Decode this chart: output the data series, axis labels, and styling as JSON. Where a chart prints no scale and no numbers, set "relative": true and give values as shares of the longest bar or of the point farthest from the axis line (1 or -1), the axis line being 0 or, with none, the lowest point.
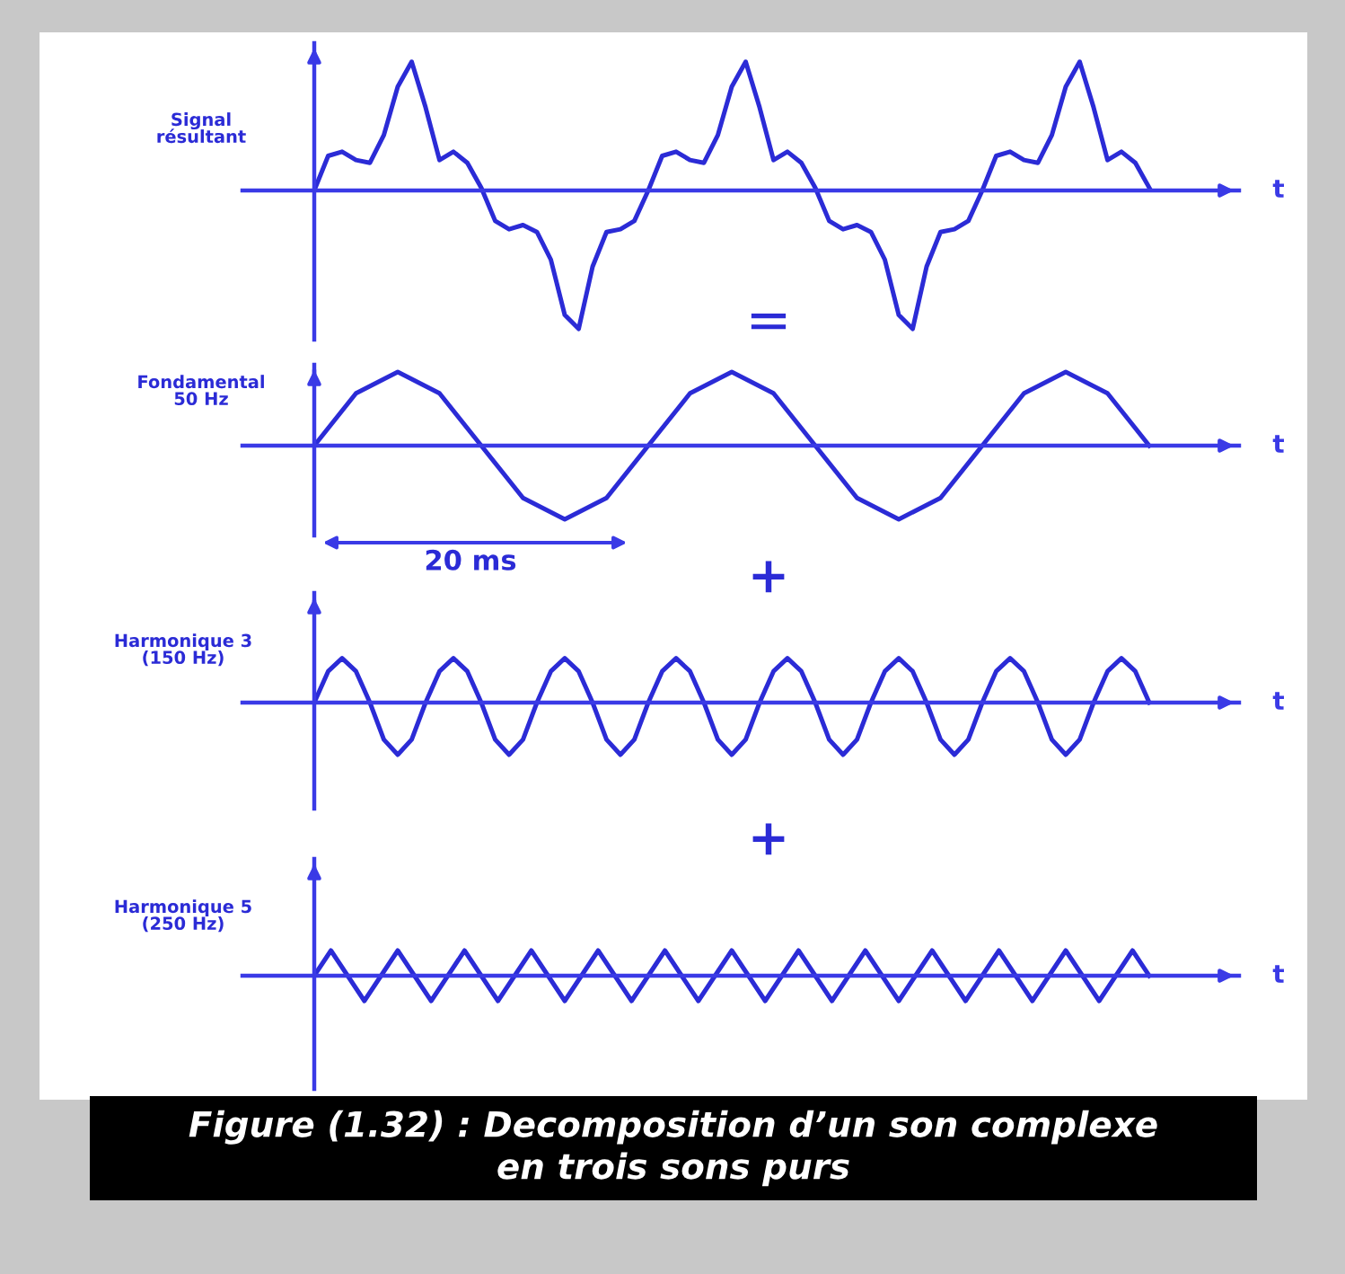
{
  "chart_data": [
    {
      "type": "line",
      "ref_lines": [
        {
          "axis": "y",
          "value": 0
        }
      ],
      "ylabel": "Signal\nrésultant",
      "xlabel": "t",
      "relative": true,
      "tick_labels": false,
      "annotations": [
        "="
      ],
      "categories": [
        null,
        null,
        null,
        null,
        null,
        null,
        null,
        null,
        null,
        null,
        null,
        null,
        null,
        null,
        null,
        null,
        null,
        null,
        null,
        null,
        null,
        null,
        null,
        null,
        null,
        null,
        null,
        null,
        null,
        null,
        null,
        null,
        null,
        null,
        null,
        null,
        null,
        null,
        null,
        null,
        null,
        null,
        null,
        null,
        null,
        null,
        null,
        null,
        null,
        null,
        null,
        null,
        null,
        null,
        null,
        null,
        null,
        null,
        null,
        null,
        null
      ],
      "series": [
        {
          "color": "#2b2bd6",
          "values": [
            0,
            0.25,
            0.28,
            0.22,
            0.2,
            0.4,
            0.75,
            0.93,
            0.6,
            0.22,
            0.28,
            0.2,
            0.02,
            -0.22,
            -0.28,
            -0.25,
            -0.3,
            -0.5,
            -0.9,
            -1,
            -0.55,
            -0.3,
            -0.28,
            -0.22,
            0,
            0.25,
            0.28,
            0.22,
            0.2,
            0.4,
            0.75,
            0.93,
            0.6,
            0.22,
            0.28,
            0.2,
            0.02,
            -0.22,
            -0.28,
            -0.25,
            -0.3,
            -0.5,
            -0.9,
            -1,
            -0.55,
            -0.3,
            -0.28,
            -0.22,
            0,
            0.25,
            0.28,
            0.22,
            0.2,
            0.4,
            0.75,
            0.93,
            0.6,
            0.22,
            0.28,
            0.2,
            0.02
          ]
        }
      ]
    },
    {
      "type": "line",
      "ref_lines": [
        {
          "axis": "y",
          "value": 0
        }
      ],
      "ylabel": "Fondamental\n50 Hz",
      "xlabel": "t",
      "relative": true,
      "tick_labels": false,
      "annotations": [
        "20 ms",
        "+"
      ],
      "categories": [
        null,
        null,
        null,
        null,
        null,
        null,
        null,
        null,
        null,
        null,
        null,
        null,
        null,
        null,
        null,
        null,
        null,
        null,
        null,
        null,
        null
      ],
      "series": [
        {
          "color": "#2b2bd6",
          "values": [
            0,
            0.71,
            1,
            0.71,
            0,
            -0.71,
            -1,
            -0.71,
            0,
            0.71,
            1,
            0.71,
            0,
            -0.71,
            -1,
            -0.71,
            0,
            0.71,
            1,
            0.71,
            0
          ]
        }
      ]
    },
    {
      "type": "line",
      "ref_lines": [
        {
          "axis": "y",
          "value": 0
        }
      ],
      "ylabel": "Harmonique 3\n(150 Hz)",
      "xlabel": "t",
      "relative": true,
      "tick_labels": false,
      "annotations": [
        "+"
      ],
      "categories": [
        null,
        null,
        null,
        null,
        null,
        null,
        null,
        null,
        null,
        null,
        null,
        null,
        null,
        null,
        null,
        null,
        null,
        null,
        null,
        null,
        null,
        null,
        null,
        null,
        null,
        null,
        null,
        null,
        null,
        null,
        null,
        null,
        null,
        null,
        null,
        null,
        null,
        null,
        null,
        null,
        null,
        null,
        null,
        null,
        null,
        null,
        null,
        null,
        null,
        null,
        null,
        null,
        null,
        null,
        null,
        null,
        null,
        null,
        null,
        null,
        null
      ],
      "series": [
        {
          "color": "#2b2bd6",
          "values": [
            0,
            0.6,
            0.85,
            0.6,
            0,
            -0.71,
            -1,
            -0.71,
            0,
            0.6,
            0.85,
            0.6,
            0,
            -0.71,
            -1,
            -0.71,
            0,
            0.6,
            0.85,
            0.6,
            0,
            -0.71,
            -1,
            -0.71,
            0,
            0.6,
            0.85,
            0.6,
            0,
            -0.71,
            -1,
            -0.71,
            0,
            0.6,
            0.85,
            0.6,
            0,
            -0.71,
            -1,
            -0.71,
            0,
            0.6,
            0.85,
            0.6,
            0,
            -0.71,
            -1,
            -0.71,
            0,
            0.6,
            0.85,
            0.6,
            0,
            -0.71,
            -1,
            -0.71,
            0,
            0.6,
            0.85,
            0.6,
            0
          ]
        }
      ]
    },
    {
      "type": "line",
      "ref_lines": [
        {
          "axis": "y",
          "value": 0
        }
      ],
      "ylabel": "Harmonique 5\n(250 Hz)",
      "xlabel": "t",
      "relative": true,
      "tick_labels": false,
      "annotations": [
        "Figure (1.32) : Decomposition d’un son complexe\nen trois sons purs"
      ],
      "categories": [
        null,
        null,
        null,
        null,
        null,
        null,
        null,
        null,
        null,
        null,
        null,
        null,
        null,
        null,
        null,
        null,
        null,
        null,
        null,
        null,
        null,
        null,
        null,
        null,
        null,
        null,
        null,
        null,
        null,
        null,
        null,
        null,
        null,
        null,
        null,
        null,
        null,
        null,
        null,
        null,
        null,
        null,
        null,
        null,
        null,
        null,
        null,
        null,
        null,
        null,
        null
      ],
      "series": [
        {
          "color": "#2b2bd6",
          "values": [
            0,
            1,
            0,
            -1,
            0,
            1,
            0,
            -1,
            0,
            1,
            0,
            -1,
            0,
            1,
            0,
            -1,
            0,
            1,
            0,
            -1,
            0,
            1,
            0,
            -1,
            0,
            1,
            0,
            -1,
            0,
            1,
            0,
            -1,
            0,
            1,
            0,
            -1,
            0,
            1,
            0,
            -1,
            0,
            1,
            0,
            -1,
            0,
            1,
            0,
            -1,
            0,
            1,
            0
          ]
        }
      ]
    }
  ]
}
